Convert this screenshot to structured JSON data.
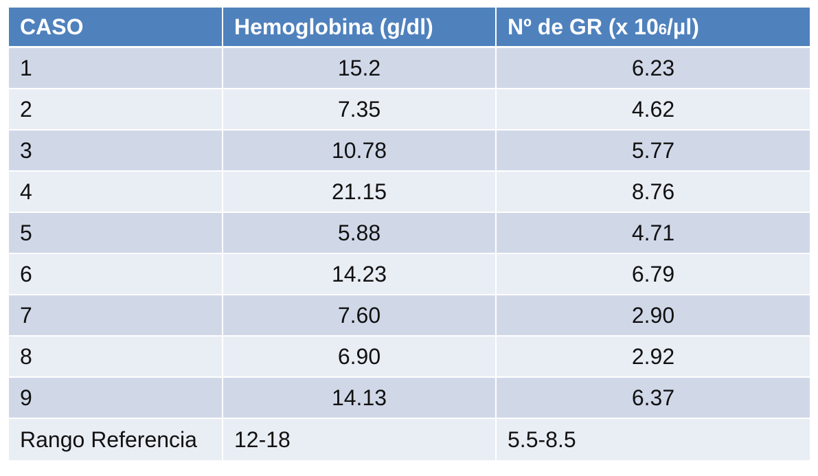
{
  "table": {
    "headers": {
      "caso": "CASO",
      "hemoglobina": "Hemoglobina (g/dl)",
      "gr_prefix": "Nº de GR (x 10",
      "gr_exp": "6",
      "gr_suffix": "/µl)"
    },
    "rows": [
      {
        "caso": "1",
        "hemoglobina": "15.2",
        "gr": "6.23"
      },
      {
        "caso": "2",
        "hemoglobina": "7.35",
        "gr": "4.62"
      },
      {
        "caso": "3",
        "hemoglobina": "10.78",
        "gr": "5.77"
      },
      {
        "caso": "4",
        "hemoglobina": "21.15",
        "gr": "8.76"
      },
      {
        "caso": "5",
        "hemoglobina": "5.88",
        "gr": "4.71"
      },
      {
        "caso": "6",
        "hemoglobina": "14.23",
        "gr": "6.79"
      },
      {
        "caso": "7",
        "hemoglobina": "7.60",
        "gr": "2.90"
      },
      {
        "caso": "8",
        "hemoglobina": "6.90",
        "gr": "2.92"
      },
      {
        "caso": "9",
        "hemoglobina": "14.13",
        "gr": "6.37"
      }
    ],
    "reference": {
      "label": "Rango Referencia",
      "hemoglobina": "12-18",
      "gr": "5.5-8.5"
    }
  },
  "colors": {
    "header_bg": "#4f81bd",
    "row_dark": "#d0d8e8",
    "row_light": "#e9edf4"
  }
}
